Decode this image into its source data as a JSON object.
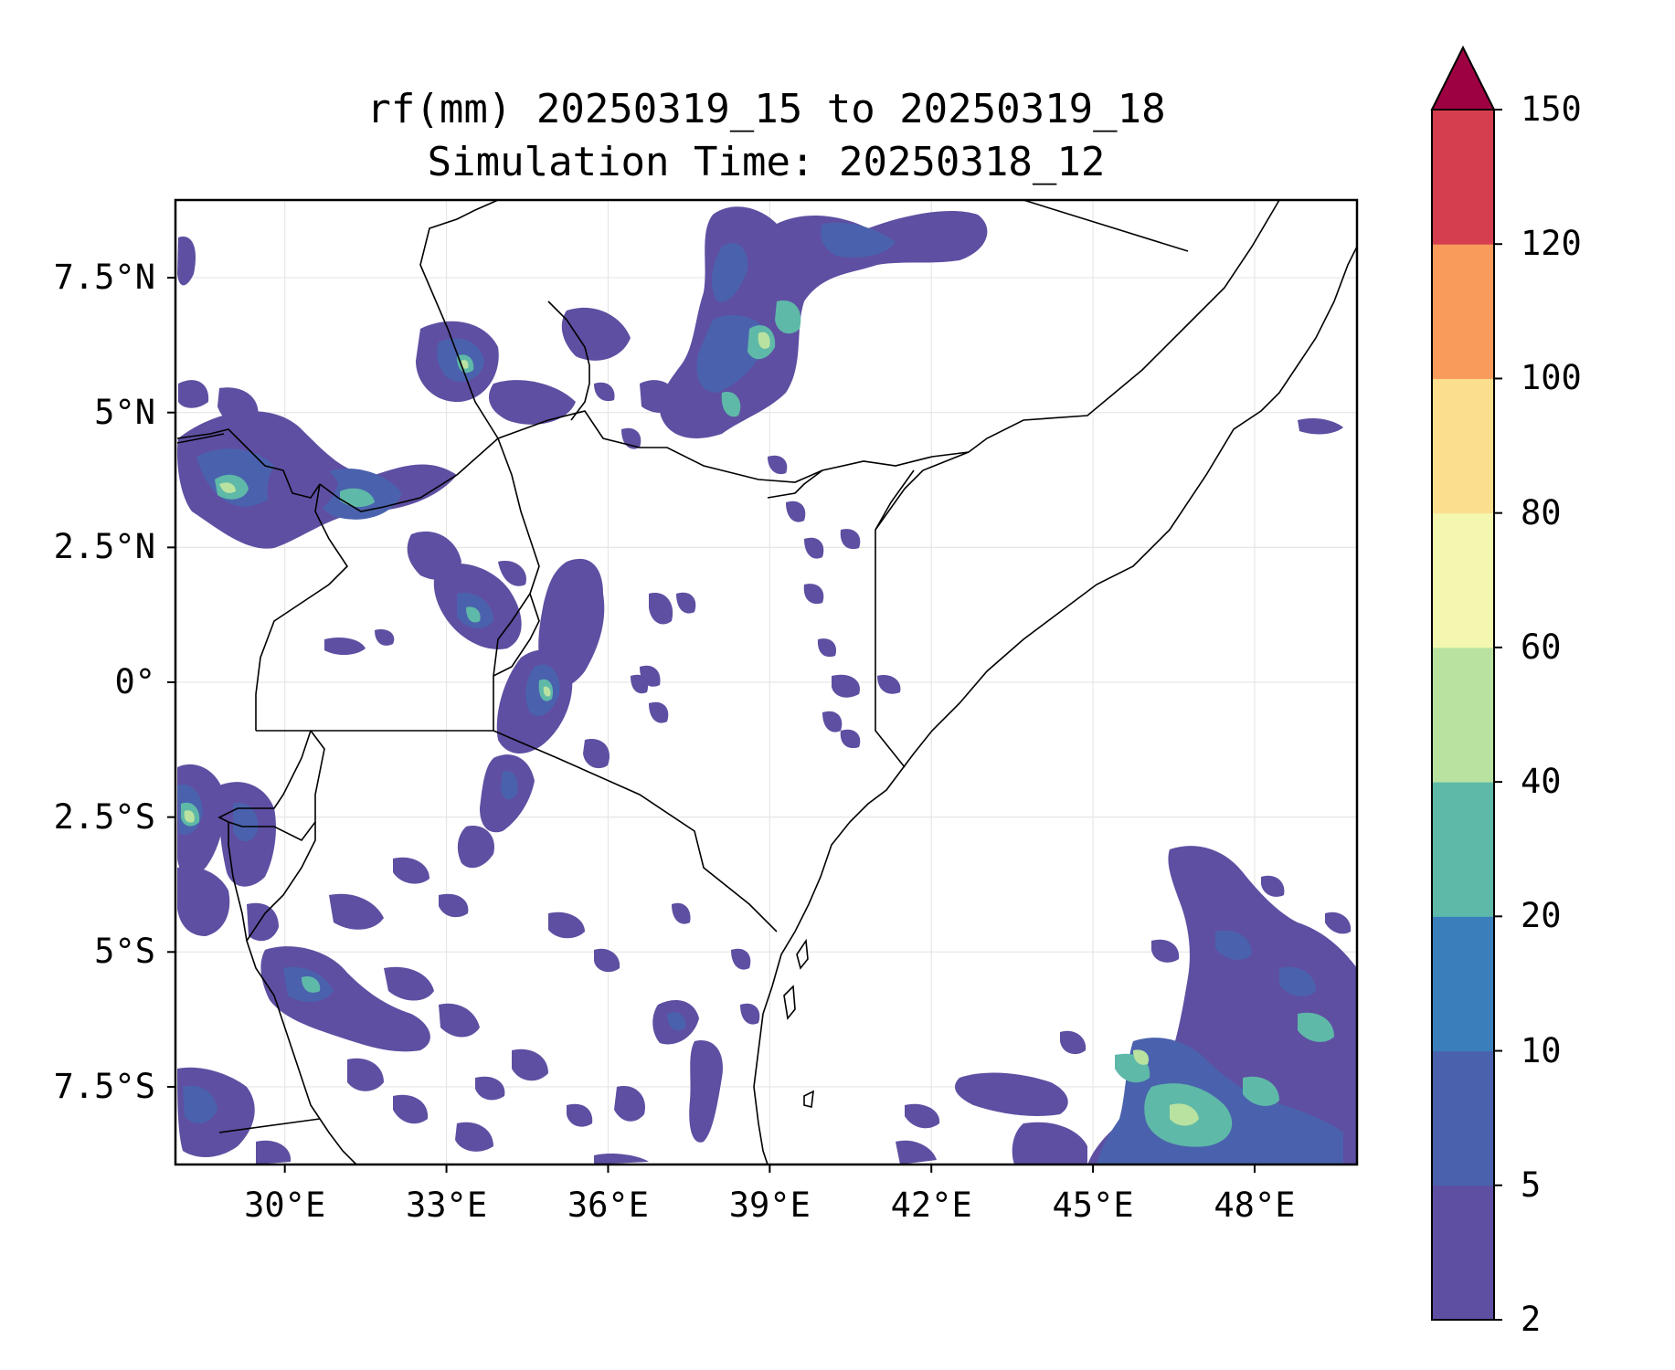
{
  "title": {
    "line1": "rf(mm) 20250319_15 to 20250319_18",
    "line2": "Simulation Time: 20250318_12"
  },
  "map": {
    "lon_range": [
      27.97,
      49.9
    ],
    "lat_range": [
      -8.94,
      8.94
    ],
    "grid": true,
    "x_ticks": [
      {
        "lon": 30,
        "label": "30°E"
      },
      {
        "lon": 33,
        "label": "33°E"
      },
      {
        "lon": 36,
        "label": "36°E"
      },
      {
        "lon": 39,
        "label": "39°E"
      },
      {
        "lon": 42,
        "label": "42°E"
      },
      {
        "lon": 45,
        "label": "45°E"
      },
      {
        "lon": 48,
        "label": "48°E"
      }
    ],
    "y_ticks": [
      {
        "lat": 7.5,
        "label": "7.5°N"
      },
      {
        "lat": 5,
        "label": "5°N"
      },
      {
        "lat": 2.5,
        "label": "2.5°N"
      },
      {
        "lat": 0,
        "label": "0°"
      },
      {
        "lat": -2.5,
        "label": "2.5°S"
      },
      {
        "lat": -5,
        "label": "5°S"
      },
      {
        "lat": -7.5,
        "label": "7.5°S"
      }
    ]
  },
  "colorbar": {
    "extend": "max",
    "extend_color": "#9e0142",
    "levels": [
      2,
      5,
      10,
      20,
      40,
      60,
      80,
      100,
      120,
      150
    ],
    "labels": [
      "2",
      "5",
      "10",
      "20",
      "40",
      "60",
      "80",
      "100",
      "120",
      "150"
    ],
    "colors": [
      "#5e4fa2",
      "#4a62ad",
      "#3a7fbc",
      "#5fb9a8",
      "#b9e2a1",
      "#f3f7b0",
      "#fbdf8e",
      "#f99b5b",
      "#d53e4f"
    ]
  }
}
